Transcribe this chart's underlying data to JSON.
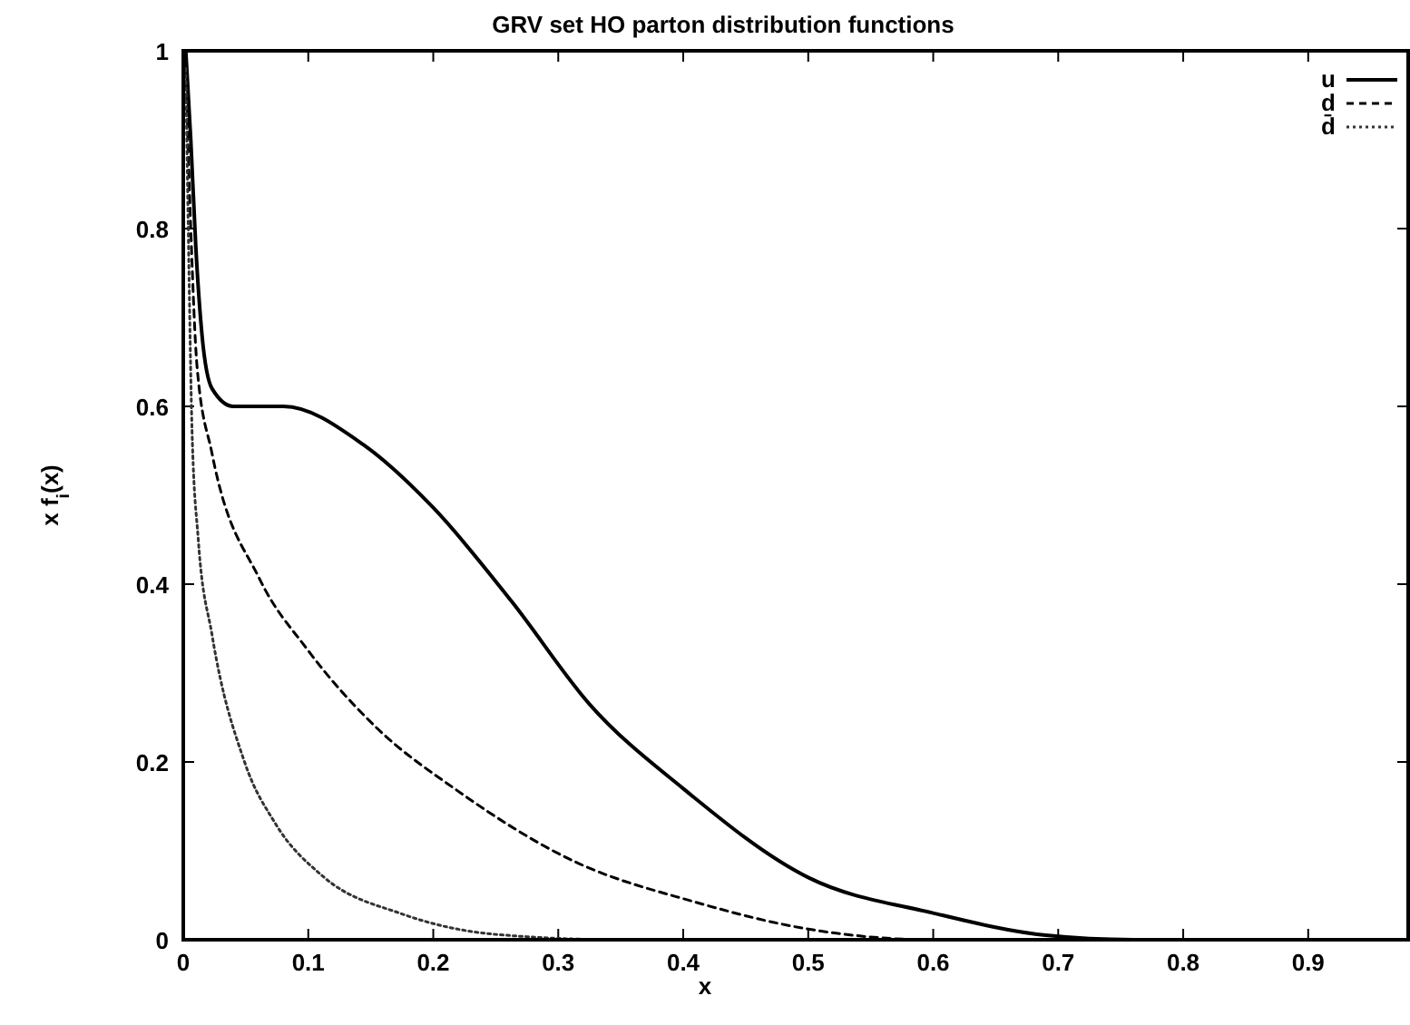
{
  "chart_data": {
    "type": "line",
    "title": "GRV set HO parton distribution functions",
    "xlabel": "x",
    "ylabel": "x f$_{i}$(x)",
    "xlim": [
      0,
      0.98
    ],
    "ylim": [
      0,
      1
    ],
    "xticks": [
      0,
      0.1,
      0.2,
      0.3,
      0.4,
      0.5,
      0.6,
      0.7,
      0.8,
      0.9
    ],
    "yticks": [
      0,
      0.2,
      0.4,
      0.6,
      0.8,
      1
    ],
    "grid": false,
    "legend": "top right",
    "series": [
      {
        "name": "u",
        "color": "#000000",
        "line_style": "solid",
        "x": [
          0.002,
          0.006,
          0.01,
          0.015,
          0.023,
          0.04,
          0.08,
          0.144,
          0.2,
          0.263,
          0.325,
          0.4,
          0.5,
          0.6,
          0.69,
          0.76,
          0.98
        ],
        "values": [
          1,
          0.9,
          0.78,
          0.68,
          0.62,
          0.6,
          0.6,
          0.557,
          0.486,
          0.38,
          0.265,
          0.17,
          0.07,
          0.03,
          0.005,
          0,
          0
        ]
      },
      {
        "name": "d",
        "color": "#000000",
        "line_style": "dashed",
        "x": [
          0.002,
          0.006,
          0.011,
          0.023,
          0.061,
          0.099,
          0.155,
          0.219,
          0.313,
          0.408,
          0.5,
          0.6,
          0.98
        ],
        "values": [
          0.98,
          0.8,
          0.645,
          0.547,
          0.406,
          0.327,
          0.238,
          0.168,
          0.088,
          0.043,
          0.012,
          0,
          0
        ]
      },
      {
        "name": "d̄",
        "color": "#333333",
        "line_style": "dotted",
        "x": [
          0.002,
          0.004,
          0.007,
          0.012,
          0.023,
          0.049,
          0.074,
          0.112,
          0.175,
          0.25,
          0.35,
          0.98
        ],
        "values": [
          0.98,
          0.8,
          0.573,
          0.45,
          0.343,
          0.2,
          0.13,
          0.071,
          0.029,
          0.006,
          0,
          0
        ]
      }
    ]
  }
}
